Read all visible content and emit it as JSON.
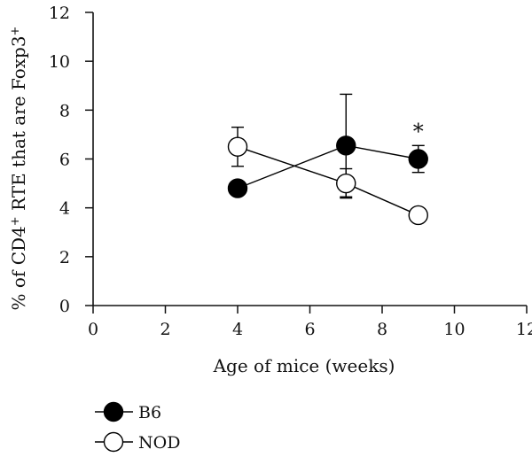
{
  "chart_data": {
    "type": "line",
    "xlabel": "Age of mice (weeks)",
    "ylabel_parts": [
      "% of CD4",
      "+",
      " RTE that are Foxp3",
      "+"
    ],
    "xlim": [
      0,
      12
    ],
    "ylim": [
      0,
      12
    ],
    "x_ticks": [
      "0",
      "2",
      "4",
      "6",
      "8",
      "10",
      "12"
    ],
    "y_ticks": [
      "0",
      "2",
      "4",
      "6",
      "8",
      "10",
      "12"
    ],
    "grid": false,
    "legend_position": "bottom-left",
    "series": [
      {
        "name": "B6",
        "marker": "filled-circle",
        "color": "#000000",
        "points": [
          {
            "x": 4,
            "y": 4.8,
            "err": 0
          },
          {
            "x": 7,
            "y": 6.55,
            "err": 2.1
          },
          {
            "x": 9,
            "y": 6.0,
            "err": 0.55
          }
        ]
      },
      {
        "name": "NOD",
        "marker": "open-circle",
        "color": "#000000",
        "points": [
          {
            "x": 4,
            "y": 6.5,
            "err": 0.8
          },
          {
            "x": 7,
            "y": 5.0,
            "err": 0.6
          },
          {
            "x": 9,
            "y": 3.7,
            "err": 0
          }
        ]
      }
    ],
    "annotations": [
      {
        "text": "*",
        "x": 9,
        "y": 6.55
      }
    ]
  }
}
